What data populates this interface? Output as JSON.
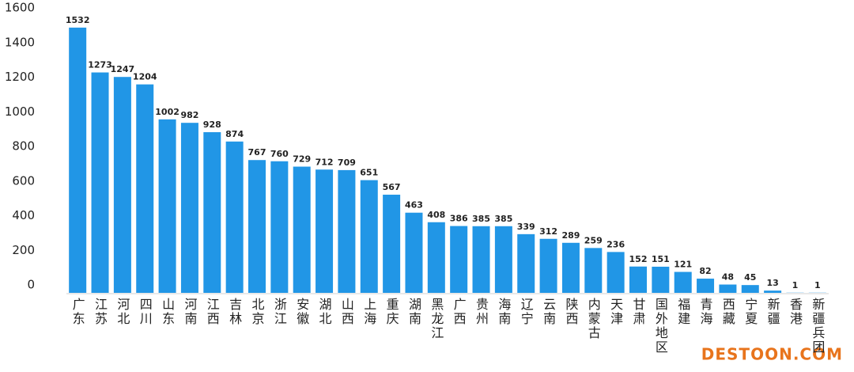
{
  "chart_data": {
    "type": "bar",
    "categories": [
      "广东",
      "江苏",
      "河北",
      "四川",
      "山东",
      "河南",
      "江西",
      "吉林",
      "北京",
      "浙江",
      "安徽",
      "湖北",
      "山西",
      "上海",
      "重庆",
      "湖南",
      "黑龙江",
      "广西",
      "贵州",
      "海南",
      "辽宁",
      "云南",
      "陕西",
      "内蒙古",
      "天津",
      "甘肃",
      "国外地区",
      "福建",
      "青海",
      "西藏",
      "宁夏",
      "新疆",
      "香港",
      "新疆兵团"
    ],
    "values": [
      1532,
      1273,
      1247,
      1204,
      1002,
      982,
      928,
      874,
      767,
      760,
      729,
      712,
      709,
      651,
      567,
      463,
      408,
      386,
      385,
      385,
      339,
      312,
      289,
      259,
      236,
      152,
      151,
      121,
      82,
      48,
      45,
      13,
      1,
      1
    ],
    "color": "#2196e6",
    "ylim": [
      0,
      1600
    ],
    "yticks": [
      0,
      200,
      400,
      600,
      800,
      1000,
      1200,
      1400,
      1600
    ],
    "grid": false,
    "watermark": "DESTOON.COM"
  }
}
